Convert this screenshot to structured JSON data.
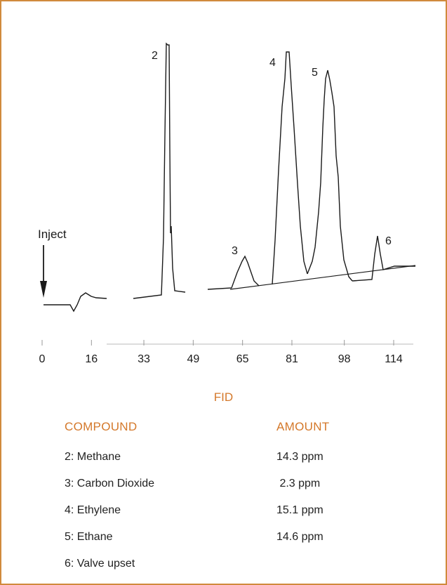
{
  "chart_data": {
    "type": "line",
    "title": "",
    "xlabel": "",
    "ylabel": "",
    "x_ticks": [
      "0",
      "16",
      "33",
      "49",
      "65",
      "81",
      "98",
      "114"
    ],
    "xlim": [
      0,
      114
    ],
    "ylim": [
      0,
      100
    ],
    "annotations": {
      "inject": "Inject",
      "peaks": [
        {
          "label": "2",
          "x": 42.5,
          "height": 96
        },
        {
          "label": "3",
          "x": 65.5,
          "height": 17
        },
        {
          "label": "4",
          "x": 80.5,
          "height": 93
        },
        {
          "label": "5",
          "x": 94.5,
          "height": 85
        },
        {
          "label": "6",
          "x": 110.5,
          "height": 17
        }
      ]
    }
  },
  "detector_label": "FID",
  "table": {
    "headers": {
      "compound": "COMPOUND",
      "amount": "AMOUNT"
    },
    "rows": [
      {
        "compound": "2: Methane",
        "amount": "14.3 ppm"
      },
      {
        "compound": "3: Carbon Dioxide",
        "amount": " 2.3 ppm"
      },
      {
        "compound": "4: Ethylene",
        "amount": "15.1 ppm"
      },
      {
        "compound": "5: Ethane",
        "amount": "14.6 ppm"
      },
      {
        "compound": "6: Valve upset",
        "amount": ""
      }
    ]
  },
  "colors": {
    "frame": "#d08a3c",
    "accent": "#d4782a",
    "trace": "#1a1a1a"
  }
}
